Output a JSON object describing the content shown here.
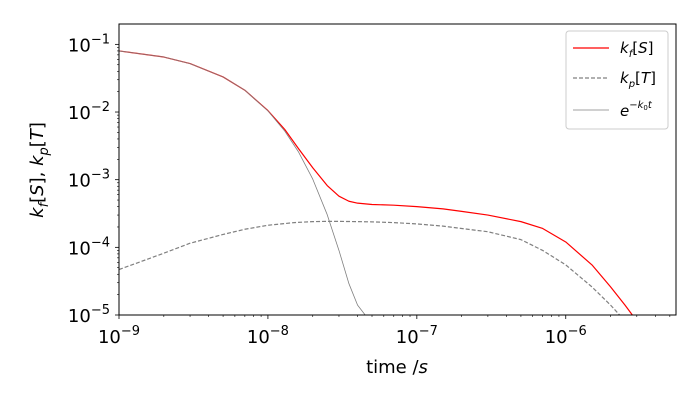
{
  "chart_data": {
    "type": "line",
    "xscale": "log",
    "yscale": "log",
    "xlim": [
      1e-09,
      5.5e-06
    ],
    "ylim": [
      1e-05,
      0.2
    ],
    "xlabel": "time /s",
    "ylabel": "k_f[S], k_p[T]",
    "grid": false,
    "legend_position": "top-right",
    "x_ticks": [
      {
        "value": 1e-09,
        "mant": "10",
        "exp": "−9"
      },
      {
        "value": 1e-08,
        "mant": "10",
        "exp": "−8"
      },
      {
        "value": 1e-07,
        "mant": "10",
        "exp": "−7"
      },
      {
        "value": 1e-06,
        "mant": "10",
        "exp": "−6"
      }
    ],
    "y_ticks": [
      {
        "value": 1e-05,
        "mant": "10",
        "exp": "−5"
      },
      {
        "value": 0.0001,
        "mant": "10",
        "exp": "−4"
      },
      {
        "value": 0.001,
        "mant": "10",
        "exp": "−3"
      },
      {
        "value": 0.01,
        "mant": "10",
        "exp": "−2"
      },
      {
        "value": 0.1,
        "mant": "10",
        "exp": "−1"
      }
    ],
    "series": [
      {
        "name": "k_f[S]",
        "color": "#ff0000",
        "style": "solid",
        "width": 1.2,
        "x": [
          1e-09,
          2e-09,
          3e-09,
          5e-09,
          7e-09,
          1e-08,
          1.3e-08,
          1.6e-08,
          2e-08,
          2.5e-08,
          3e-08,
          3.5e-08,
          4e-08,
          5e-08,
          7e-08,
          1e-07,
          1.5e-07,
          2e-07,
          3e-07,
          5e-07,
          7e-07,
          1e-06,
          1.5e-06,
          2e-06,
          2.5e-06,
          2.8e-06
        ],
        "y": [
          0.08,
          0.065,
          0.052,
          0.033,
          0.021,
          0.0105,
          0.0055,
          0.0029,
          0.0015,
          0.00082,
          0.00057,
          0.00048,
          0.00045,
          0.00043,
          0.00042,
          0.0004,
          0.00037,
          0.00034,
          0.0003,
          0.00024,
          0.00019,
          0.00012,
          5.5e-05,
          2.6e-05,
          1.4e-05,
          1e-05
        ]
      },
      {
        "name": "k_p[T]",
        "color": "#808080",
        "style": "dashed",
        "width": 1.2,
        "x": [
          1e-09,
          1.5e-09,
          2e-09,
          3e-09,
          5e-09,
          7e-09,
          1e-08,
          1.5e-08,
          2e-08,
          2.5e-08,
          3e-08,
          5e-08,
          7e-08,
          1e-07,
          1.5e-07,
          2e-07,
          3e-07,
          5e-07,
          7e-07,
          1e-06,
          1.5e-06,
          2e-06,
          2.3e-06
        ],
        "y": [
          4.7e-05,
          6.5e-05,
          8.2e-05,
          0.000115,
          0.000155,
          0.000185,
          0.000212,
          0.000232,
          0.00024,
          0.000242,
          0.000242,
          0.000238,
          0.000232,
          0.000222,
          0.000206,
          0.00019,
          0.00017,
          0.00013,
          9e-05,
          5.5e-05,
          2.6e-05,
          1.4e-05,
          1e-05
        ]
      },
      {
        "name": "e^{-k_0 t}",
        "color": "#808080",
        "style": "solid",
        "width": 0.8,
        "x": [
          1e-09,
          2e-09,
          3e-09,
          5e-09,
          7e-09,
          1e-08,
          1.3e-08,
          1.6e-08,
          2e-08,
          2.5e-08,
          3e-08,
          3.5e-08,
          4e-08,
          4.5e-08
        ],
        "y": [
          0.08,
          0.065,
          0.052,
          0.033,
          0.021,
          0.0104,
          0.0052,
          0.0026,
          0.00102,
          0.000305,
          9e-05,
          2.9e-05,
          1.4e-05,
          1e-05
        ]
      }
    ]
  }
}
